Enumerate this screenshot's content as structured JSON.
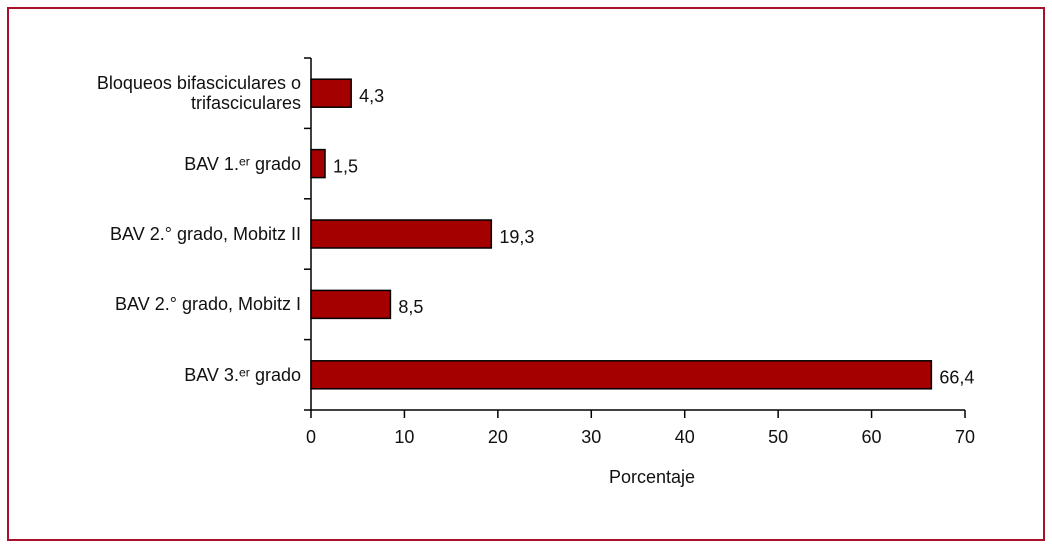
{
  "chart_data": {
    "type": "barh",
    "categories": [
      "Bloqueos bifasciculares o trifasciculares",
      "BAV 1.ᵉʳ grado",
      "BAV 2.° grado, Mobitz II",
      "BAV 2.° grado, Mobitz I",
      "BAV 3.ᵉʳ grado"
    ],
    "values": [
      4.3,
      1.5,
      19.3,
      8.5,
      66.4
    ],
    "value_labels": [
      "4,3",
      "1,5",
      "19,3",
      "8,5",
      "66,4"
    ],
    "color": "#a50000",
    "x_label": "Porcentaje",
    "xlim": [
      0,
      70
    ],
    "xticks": [
      0,
      10,
      20,
      30,
      40,
      50,
      60,
      70
    ]
  }
}
